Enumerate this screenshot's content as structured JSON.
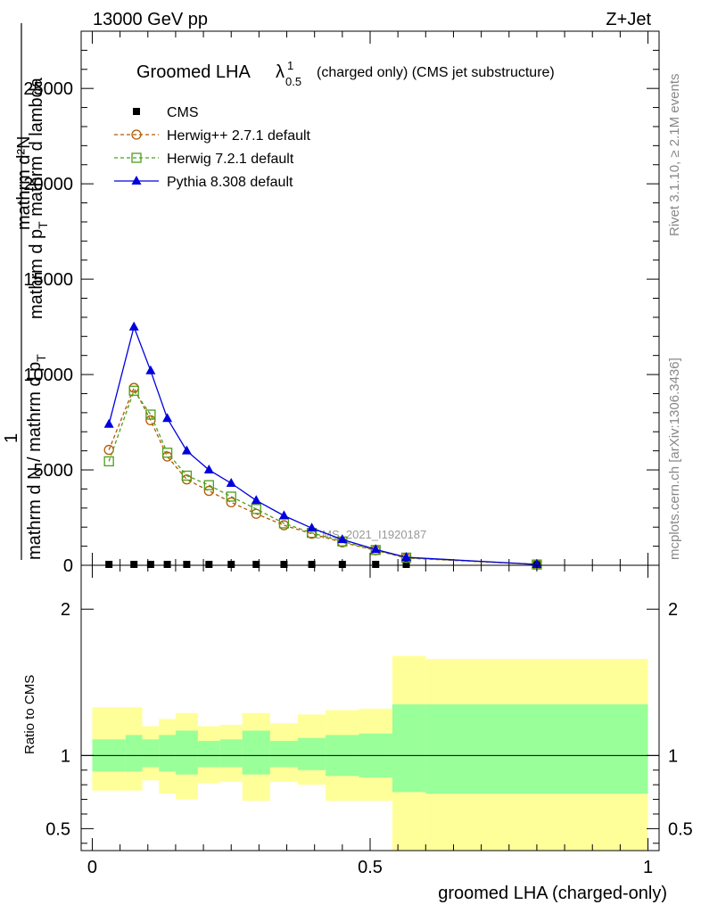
{
  "header": {
    "left": "13000 GeV pp",
    "right": "Z+Jet"
  },
  "side_labels": {
    "rivet": "Rivet 3.1.10, ≥ 2.1M events",
    "mcplots": "mcplots.cern.ch [arXiv:1306.3436]"
  },
  "watermark": "CMS_2021_I1920187",
  "chart_data": [
    {
      "type": "line",
      "title": "Groomed LHA",
      "title_symbol": "λ",
      "title_sup": "1",
      "title_sub": "0.5",
      "subtitle": "(charged only) (CMS jet substructure)",
      "ylabel_top": "mathrm d²N",
      "ylabel_top_sub": "mathrm d p",
      "ylabel_top_sub2": "T",
      "ylabel_top_sub3": " mathrm d lambda",
      "ylabel_one": "1",
      "ylabel_bottom": "mathrm d N / mathrm d p",
      "ylabel_bottom_sub": "T",
      "ylim": [
        0,
        28000
      ],
      "yticks": [
        0,
        5000,
        10000,
        15000,
        20000,
        25000
      ],
      "ytick_labels": [
        "0",
        "5000",
        "10000",
        "15000",
        "20000",
        "25000"
      ],
      "legend_placement": "top-left",
      "series": [
        {
          "name": "CMS",
          "color": "#000000",
          "marker": "square-filled",
          "x": [
            0.03,
            0.075,
            0.105,
            0.135,
            0.17,
            0.21,
            0.25,
            0.295,
            0.345,
            0.395,
            0.45,
            0.51,
            0.565,
            0.8
          ],
          "y": [
            0,
            0,
            0,
            0,
            0,
            0,
            0,
            0,
            0,
            0,
            0,
            0,
            0,
            0
          ]
        },
        {
          "name": "Herwig++ 2.7.1 default",
          "color": "#b35900",
          "marker": "circle-open",
          "dash": true,
          "x": [
            0.03,
            0.075,
            0.105,
            0.135,
            0.17,
            0.21,
            0.25,
            0.295,
            0.345,
            0.395,
            0.45,
            0.51,
            0.565,
            0.8
          ],
          "y": [
            6050,
            9300,
            7600,
            5700,
            4500,
            3900,
            3300,
            2700,
            2100,
            1650,
            1200,
            780,
            380,
            40
          ]
        },
        {
          "name": "Herwig 7.2.1 default",
          "color": "#4d9e1a",
          "marker": "square-open",
          "dash": true,
          "x": [
            0.03,
            0.075,
            0.105,
            0.135,
            0.17,
            0.21,
            0.25,
            0.295,
            0.345,
            0.395,
            0.45,
            0.51,
            0.565,
            0.8
          ],
          "y": [
            5450,
            9150,
            7900,
            5900,
            4700,
            4200,
            3600,
            2950,
            2200,
            1700,
            1250,
            800,
            400,
            40
          ]
        },
        {
          "name": "Pythia 8.308 default",
          "color": "#0000dd",
          "marker": "triangle-filled",
          "dash": false,
          "x": [
            0.03,
            0.075,
            0.105,
            0.135,
            0.17,
            0.21,
            0.25,
            0.295,
            0.345,
            0.395,
            0.45,
            0.51,
            0.565,
            0.8
          ],
          "y": [
            7400,
            12500,
            10200,
            7700,
            6000,
            5000,
            4300,
            3400,
            2600,
            1950,
            1350,
            830,
            420,
            45
          ]
        }
      ]
    },
    {
      "type": "area",
      "ylabel": "Ratio to CMS",
      "xlabel": "groomed LHA (charged-only)",
      "xlim": [
        -0.02,
        1.02
      ],
      "ylim": [
        0.35,
        2.3
      ],
      "yticks": [
        0.5,
        1,
        2
      ],
      "ytick_labels": [
        "0.5",
        "1",
        "2"
      ],
      "xticks": [
        0,
        0.5,
        1
      ],
      "xtick_labels": [
        "0",
        "0.5",
        "1"
      ],
      "reference_line": 1,
      "bins_edges": [
        0,
        0.06,
        0.09,
        0.12,
        0.15,
        0.19,
        0.23,
        0.27,
        0.32,
        0.37,
        0.42,
        0.48,
        0.54,
        0.6,
        1.0
      ],
      "inner_band": {
        "color": "#99ff99",
        "low": [
          0.89,
          0.89,
          0.92,
          0.89,
          0.87,
          0.92,
          0.92,
          0.87,
          0.92,
          0.9,
          0.86,
          0.85,
          0.75,
          0.74
        ],
        "high": [
          1.11,
          1.14,
          1.11,
          1.14,
          1.17,
          1.1,
          1.11,
          1.17,
          1.1,
          1.12,
          1.14,
          1.15,
          1.35,
          1.35
        ]
      },
      "outer_band": {
        "color": "#ffff99",
        "low": [
          0.76,
          0.76,
          0.83,
          0.74,
          0.7,
          0.81,
          0.82,
          0.69,
          0.82,
          0.8,
          0.69,
          0.69,
          0.35,
          0.35
        ],
        "high": [
          1.33,
          1.33,
          1.2,
          1.25,
          1.29,
          1.2,
          1.21,
          1.29,
          1.22,
          1.28,
          1.31,
          1.32,
          1.68,
          1.66
        ]
      }
    }
  ]
}
